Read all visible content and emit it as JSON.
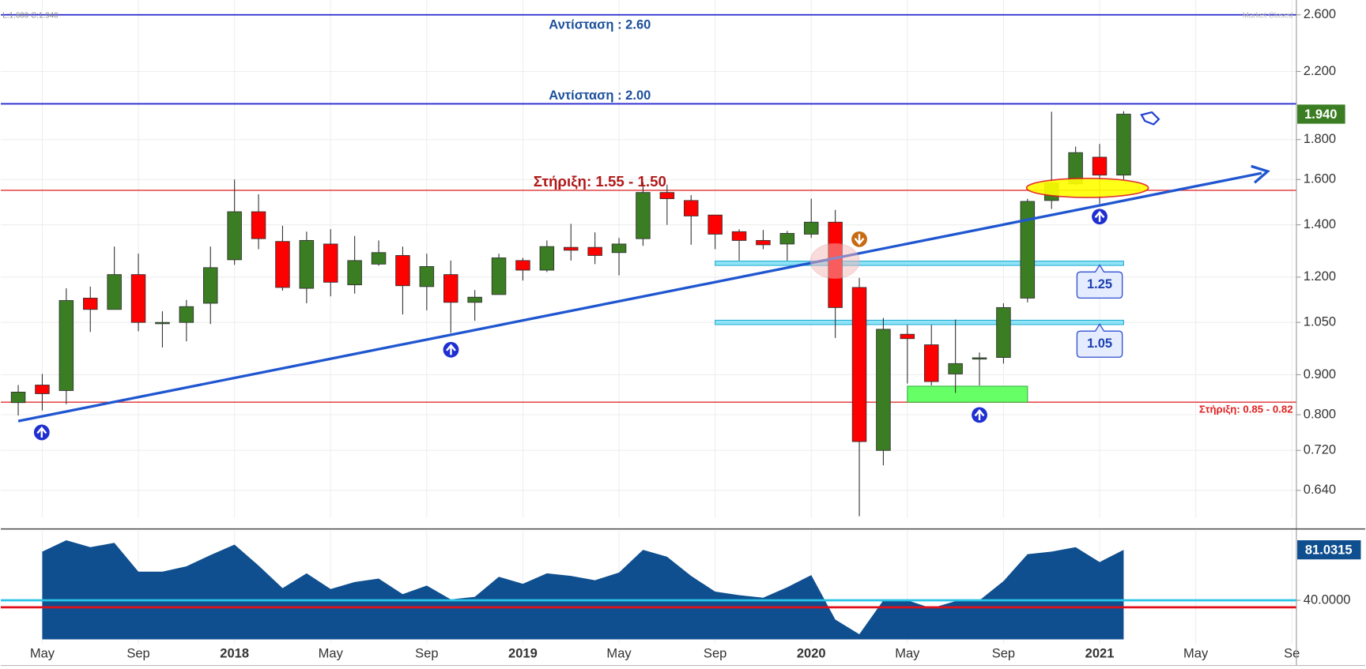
{
  "header": {
    "ohlc": "L:1.600  C:1.940",
    "status": "Market Closed"
  },
  "chart_data": [
    {
      "type": "candlestick",
      "log_scale": true,
      "grid": true,
      "up_color": "#3a7d22",
      "down_color": "#ff0000",
      "x": [
        "2017-04",
        "2017-05",
        "2017-06",
        "2017-07",
        "2017-08",
        "2017-09",
        "2017-10",
        "2017-11",
        "2017-12",
        "2018-01",
        "2018-02",
        "2018-03",
        "2018-04",
        "2018-05",
        "2018-06",
        "2018-07",
        "2018-08",
        "2018-09",
        "2018-10",
        "2018-11",
        "2018-12",
        "2019-01",
        "2019-02",
        "2019-03",
        "2019-04",
        "2019-05",
        "2019-06",
        "2019-07",
        "2019-08",
        "2019-09",
        "2019-10",
        "2019-11",
        "2019-12",
        "2020-01",
        "2020-02",
        "2020-03",
        "2020-04",
        "2020-05",
        "2020-06",
        "2020-07",
        "2020-08",
        "2020-09",
        "2020-10",
        "2020-11",
        "2020-12",
        "2021-01",
        "2021-02"
      ],
      "open": [
        0.829,
        0.873,
        0.859,
        1.128,
        1.091,
        1.209,
        1.05,
        1.05,
        1.111,
        1.263,
        1.455,
        1.333,
        1.161,
        1.323,
        1.173,
        1.247,
        1.279,
        1.167,
        1.209,
        1.114,
        1.14,
        1.26,
        1.225,
        1.31,
        1.31,
        1.29,
        1.344,
        1.54,
        1.504,
        1.441,
        1.372,
        1.337,
        1.323,
        1.362,
        1.411,
        1.164,
        0.72,
        1.014,
        0.983,
        0.902,
        0.946,
        0.947,
        1.128,
        1.504,
        1.58,
        1.709,
        1.621
      ],
      "high": [
        0.873,
        0.902,
        1.161,
        1.167,
        1.313,
        1.286,
        1.085,
        1.122,
        1.313,
        1.6,
        1.532,
        1.396,
        1.372,
        1.382,
        1.355,
        1.337,
        1.313,
        1.286,
        1.26,
        1.155,
        1.286,
        1.27,
        1.337,
        1.404,
        1.369,
        1.347,
        1.588,
        1.576,
        1.528,
        1.441,
        1.382,
        1.379,
        1.375,
        1.512,
        1.463,
        1.197,
        1.064,
        1.042,
        1.042,
        1.059,
        0.961,
        1.111,
        1.512,
        1.954,
        1.763,
        1.777,
        1.957
      ],
      "low": [
        0.798,
        0.81,
        0.825,
        1.021,
        1.091,
        1.023,
        0.975,
        0.993,
        1.045,
        1.244,
        1.303,
        1.153,
        1.111,
        1.134,
        1.143,
        1.241,
        1.075,
        1.088,
        1.018,
        1.055,
        1.14,
        1.188,
        1.218,
        1.26,
        1.247,
        1.206,
        1.316,
        1.4,
        1.32,
        1.303,
        1.26,
        1.303,
        1.26,
        1.347,
        1.003,
        0.593,
        0.689,
        0.877,
        0.872,
        0.853,
        0.872,
        0.93,
        1.114,
        1.467,
        1.572,
        1.489,
        1.6
      ],
      "close": [
        0.855,
        0.851,
        1.12,
        1.091,
        1.209,
        1.05,
        1.05,
        1.1,
        1.234,
        1.455,
        1.344,
        1.164,
        1.337,
        1.182,
        1.26,
        1.29,
        1.17,
        1.238,
        1.114,
        1.131,
        1.27,
        1.225,
        1.313,
        1.299,
        1.279,
        1.323,
        1.54,
        1.512,
        1.437,
        1.362,
        1.337,
        1.32,
        1.365,
        1.411,
        1.097,
        0.739,
        1.029,
        1.001,
        0.882,
        0.93,
        0.946,
        1.097,
        1.5,
        1.584,
        1.732,
        1.621,
        1.94
      ],
      "ylim": [
        0.5906,
        2.716
      ],
      "yticks": [
        {
          "value": 2.6,
          "label": "2.600"
        },
        {
          "value": 2.2,
          "label": "2.200"
        },
        {
          "value": 1.8,
          "label": "1.800"
        },
        {
          "value": 1.6,
          "label": "1.600"
        },
        {
          "value": 1.4,
          "label": "1.400"
        },
        {
          "value": 1.2,
          "label": "1.200"
        },
        {
          "value": 1.05,
          "label": "1.050"
        },
        {
          "value": 0.9,
          "label": "0.900"
        },
        {
          "value": 0.8,
          "label": "0.800"
        },
        {
          "value": 0.72,
          "label": "0.720"
        },
        {
          "value": 0.64,
          "label": "0.640"
        }
      ],
      "xlim": [
        "2017-03",
        "2021-10"
      ],
      "xticks": [
        {
          "value": "2017-05",
          "label": "May"
        },
        {
          "value": "2017-09",
          "label": "Sep"
        },
        {
          "value": "2018-01",
          "label": "2018"
        },
        {
          "value": "2018-05",
          "label": "May"
        },
        {
          "value": "2018-09",
          "label": "Sep"
        },
        {
          "value": "2019-01",
          "label": "2019"
        },
        {
          "value": "2019-05",
          "label": "May"
        },
        {
          "value": "2019-09",
          "label": "Sep"
        },
        {
          "value": "2020-01",
          "label": "2020"
        },
        {
          "value": "2020-05",
          "label": "May"
        },
        {
          "value": "2020-09",
          "label": "Sep"
        },
        {
          "value": "2021-01",
          "label": "2021"
        },
        {
          "value": "2021-05",
          "label": "May"
        },
        {
          "value": "2021-09",
          "label": "Se"
        }
      ],
      "current": {
        "value": 1.94,
        "label": "1.940",
        "color": "#3a7d22"
      },
      "hlines": [
        {
          "value": 2.6,
          "label": "Αντίσταση : 2.60",
          "color": "#2a2ad0"
        },
        {
          "value": 2.0,
          "label": "Αντίσταση : 2.00",
          "color": "#2a2ad0"
        },
        {
          "value": 1.55,
          "label": "Στήριξη: 1.55 - 1.50",
          "color": "#e03030"
        },
        {
          "value": 0.83,
          "label": "Στήριξη: 0.85 - 0.82",
          "color": "#e03030"
        }
      ],
      "zones": [
        {
          "value": 1.25,
          "label": "1.25",
          "from": "2019-09",
          "to": "2021-02"
        },
        {
          "value": 1.05,
          "label": "1.05",
          "from": "2019-09",
          "to": "2021-02"
        }
      ],
      "box": {
        "from": "2020-05",
        "to": "2020-10",
        "low": 0.83,
        "high": 0.87,
        "color": "#66ff66"
      }
    },
    {
      "type": "area",
      "color": "#0f4f8f",
      "values": [
        null,
        79.6,
        88.8,
        83.2,
        86.7,
        63.3,
        63.3,
        67.6,
        76.8,
        85.3,
        68.3,
        49.9,
        61.9,
        49.2,
        54.9,
        57.7,
        45.0,
        52.0,
        40.7,
        42.8,
        59.1,
        53.4,
        61.9,
        59.8,
        56.3,
        62.6,
        81.0,
        75.4,
        59.8,
        47.1,
        44.2,
        42.1,
        50.6,
        60.5,
        24.4,
        12.4,
        40.0,
        40.0,
        33.6,
        39.3,
        40.0,
        55.6,
        77.5,
        79.6,
        83.2,
        71.1,
        81.0315
      ],
      "ylim": [
        8.2,
        96.6
      ],
      "yticks": [
        {
          "value": 40,
          "label": "40.0000"
        }
      ],
      "levels": [
        {
          "value": 40,
          "color": "#29c5e8"
        },
        {
          "value": 34.3,
          "color": "#e0101a"
        }
      ],
      "current": 81.0315
    }
  ]
}
